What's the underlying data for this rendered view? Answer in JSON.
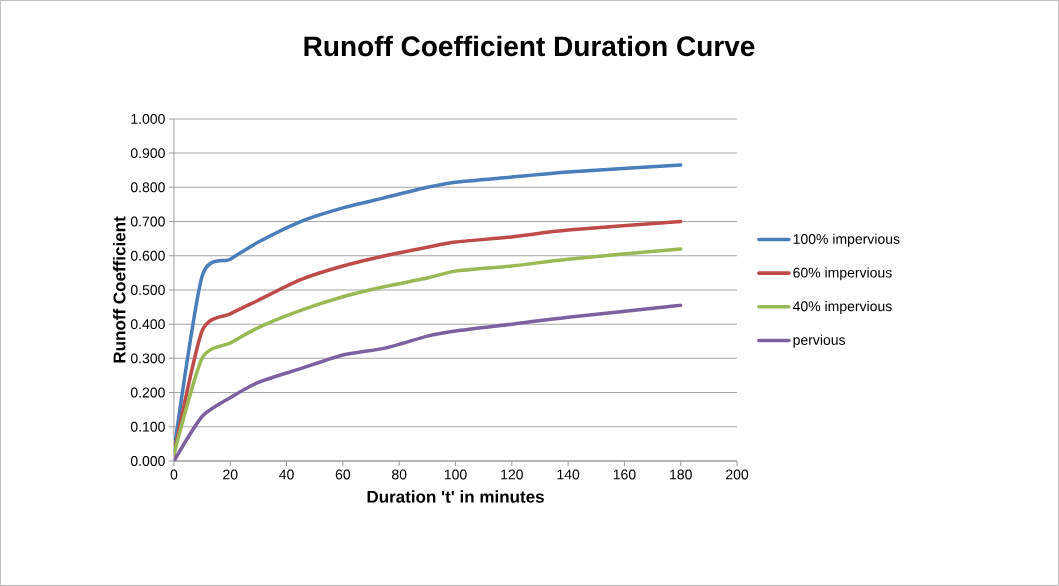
{
  "chart_data": {
    "type": "line",
    "title": "Runoff Coefficient Duration Curve",
    "xlabel": "Duration 't' in minutes",
    "ylabel": "Runoff Coefficient",
    "x": [
      0,
      10,
      20,
      30,
      45,
      60,
      75,
      90,
      100,
      120,
      140,
      180
    ],
    "series": [
      {
        "name": "100% impervious",
        "color": "#4a7ebb",
        "values": [
          0.03,
          0.54,
          0.59,
          0.64,
          0.7,
          0.74,
          0.77,
          0.8,
          0.815,
          0.83,
          0.845,
          0.865
        ]
      },
      {
        "name": "60% impervious",
        "color": "#be4b48",
        "values": [
          0.02,
          0.38,
          0.43,
          0.47,
          0.53,
          0.57,
          0.6,
          0.625,
          0.64,
          0.655,
          0.675,
          0.7
        ]
      },
      {
        "name": "40% impervious",
        "color": "#98b954",
        "values": [
          0.02,
          0.3,
          0.345,
          0.39,
          0.44,
          0.48,
          0.51,
          0.535,
          0.555,
          0.57,
          0.59,
          0.62
        ]
      },
      {
        "name": "pervious",
        "color": "#7d60a0",
        "values": [
          0.0,
          0.13,
          0.185,
          0.23,
          0.27,
          0.31,
          0.33,
          0.365,
          0.38,
          0.4,
          0.42,
          0.455
        ]
      }
    ],
    "xlim": [
      0,
      200
    ],
    "xticks": [
      0,
      20,
      40,
      60,
      80,
      100,
      120,
      140,
      160,
      180,
      200
    ],
    "ylim": [
      0,
      1
    ],
    "yticks": [
      {
        "value": 0,
        "label": "0.000"
      },
      {
        "value": 0.1,
        "label": "0.100"
      },
      {
        "value": 0.2,
        "label": "0.200"
      },
      {
        "value": 0.3,
        "label": "0.300"
      },
      {
        "value": 0.4,
        "label": "0.400"
      },
      {
        "value": 0.5,
        "label": "0.500"
      },
      {
        "value": 0.6,
        "label": "0.600"
      },
      {
        "value": 0.7,
        "label": "0.700"
      },
      {
        "value": 0.8,
        "label": "0.800"
      },
      {
        "value": 0.9,
        "label": "0.900"
      },
      {
        "value": 1,
        "label": "1.000"
      }
    ],
    "grid": "y",
    "legend": "right",
    "marker": "none",
    "line_style": "solid"
  }
}
